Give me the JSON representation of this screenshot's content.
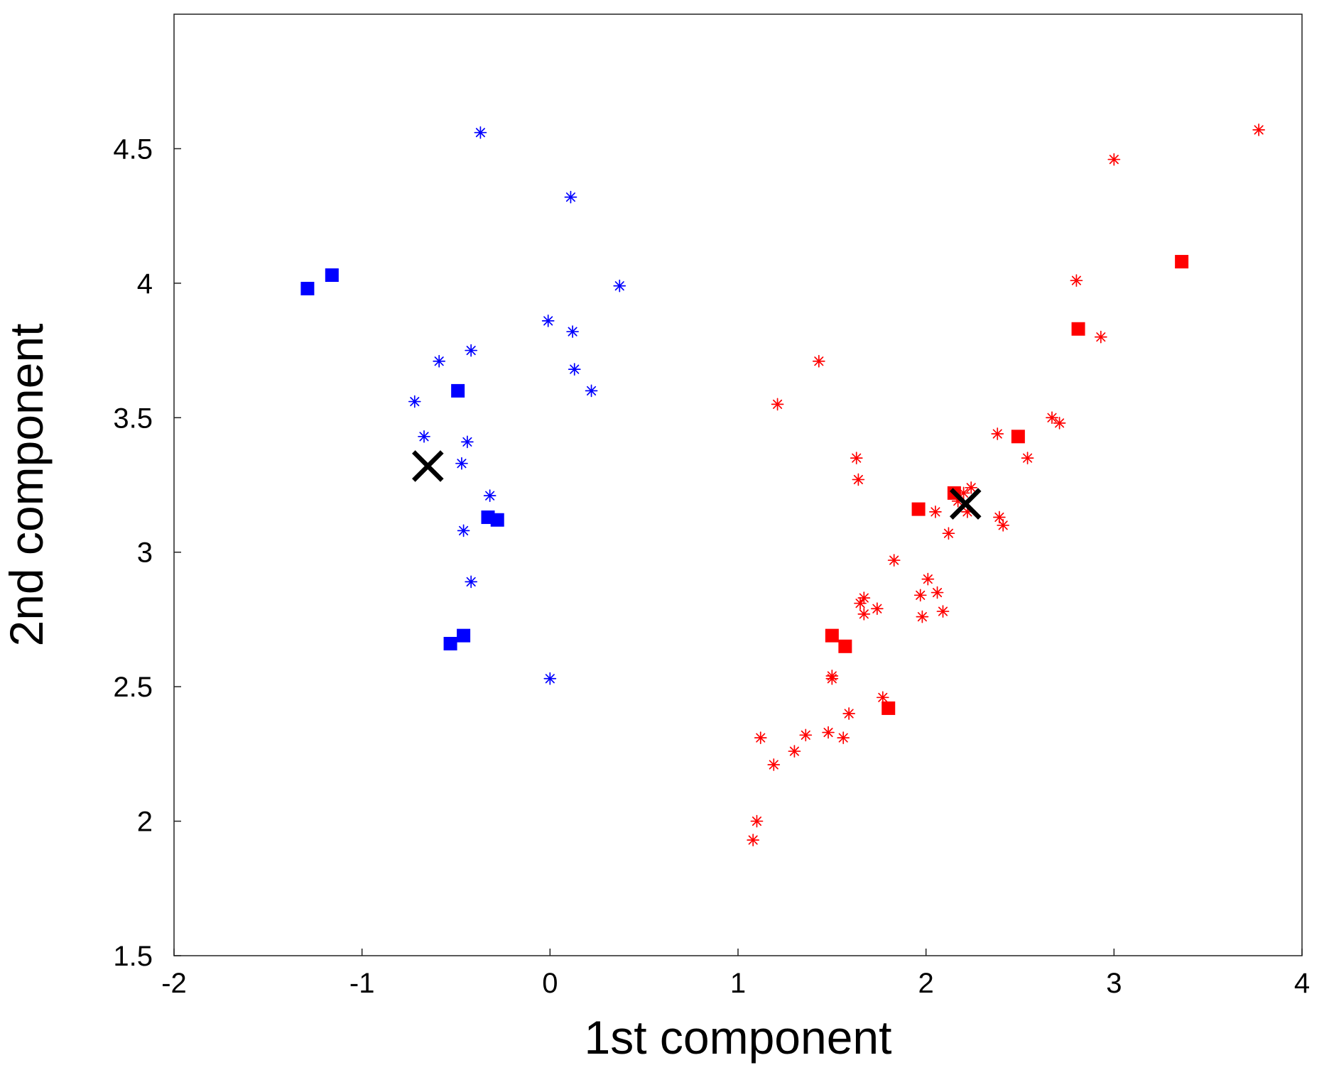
{
  "chart_data": {
    "type": "scatter",
    "title": "",
    "xlabel": "1st component",
    "ylabel": "2nd component",
    "xlim": [
      -2,
      4
    ],
    "ylim": [
      1.5,
      5
    ],
    "x_ticks": [
      -2,
      -1,
      0,
      1,
      2,
      3,
      4
    ],
    "y_ticks": [
      1.5,
      2,
      2.5,
      3,
      3.5,
      4,
      4.5
    ],
    "x_tick_labels": [
      "-2",
      "-1",
      "0",
      "1",
      "2",
      "3",
      "4"
    ],
    "y_tick_labels": [
      "1.5",
      "2",
      "2.5",
      "3",
      "3.5",
      "4",
      "4.5"
    ],
    "grid": false,
    "legend": "none",
    "series": [
      {
        "marker": "asterisk",
        "color": "#0000ff",
        "points": [
          [
            -0.37,
            4.56
          ],
          [
            0.11,
            4.32
          ],
          [
            0.37,
            3.99
          ],
          [
            -0.01,
            3.86
          ],
          [
            0.12,
            3.82
          ],
          [
            -0.42,
            3.75
          ],
          [
            -0.59,
            3.71
          ],
          [
            0.13,
            3.68
          ],
          [
            0.22,
            3.6
          ],
          [
            -0.72,
            3.56
          ],
          [
            -0.67,
            3.43
          ],
          [
            -0.44,
            3.41
          ],
          [
            -0.47,
            3.33
          ],
          [
            -0.32,
            3.21
          ],
          [
            -0.46,
            3.08
          ],
          [
            -0.42,
            2.89
          ],
          [
            0.0,
            2.53
          ]
        ]
      },
      {
        "marker": "square",
        "color": "#0000ff",
        "points": [
          [
            -1.29,
            3.98
          ],
          [
            -1.16,
            4.03
          ],
          [
            -0.49,
            3.6
          ],
          [
            -0.33,
            3.13
          ],
          [
            -0.28,
            3.12
          ],
          [
            -0.46,
            2.69
          ],
          [
            -0.53,
            2.66
          ]
        ]
      },
      {
        "marker": "asterisk",
        "color": "#ff0000",
        "points": [
          [
            3.77,
            4.57
          ],
          [
            3.0,
            4.46
          ],
          [
            2.8,
            4.01
          ],
          [
            2.93,
            3.8
          ],
          [
            1.43,
            3.71
          ],
          [
            1.21,
            3.55
          ],
          [
            2.67,
            3.5
          ],
          [
            2.71,
            3.48
          ],
          [
            2.38,
            3.44
          ],
          [
            2.54,
            3.35
          ],
          [
            1.63,
            3.35
          ],
          [
            1.64,
            3.27
          ],
          [
            2.24,
            3.24
          ],
          [
            2.2,
            3.22
          ],
          [
            2.17,
            3.19
          ],
          [
            2.22,
            3.15
          ],
          [
            2.05,
            3.15
          ],
          [
            2.39,
            3.13
          ],
          [
            2.41,
            3.1
          ],
          [
            2.12,
            3.07
          ],
          [
            1.83,
            2.97
          ],
          [
            2.01,
            2.9
          ],
          [
            1.97,
            2.84
          ],
          [
            2.06,
            2.85
          ],
          [
            1.67,
            2.83
          ],
          [
            1.65,
            2.81
          ],
          [
            1.74,
            2.79
          ],
          [
            1.67,
            2.77
          ],
          [
            2.09,
            2.78
          ],
          [
            1.98,
            2.76
          ],
          [
            1.5,
            2.54
          ],
          [
            1.5,
            2.53
          ],
          [
            1.77,
            2.46
          ],
          [
            1.59,
            2.4
          ],
          [
            1.12,
            2.31
          ],
          [
            1.36,
            2.32
          ],
          [
            1.48,
            2.33
          ],
          [
            1.56,
            2.31
          ],
          [
            1.3,
            2.26
          ],
          [
            1.19,
            2.21
          ],
          [
            1.1,
            2.0
          ],
          [
            1.08,
            1.93
          ]
        ]
      },
      {
        "marker": "square",
        "color": "#ff0000",
        "points": [
          [
            3.36,
            4.08
          ],
          [
            2.81,
            3.83
          ],
          [
            2.49,
            3.43
          ],
          [
            1.96,
            3.16
          ],
          [
            2.15,
            3.22
          ],
          [
            1.5,
            2.69
          ],
          [
            1.57,
            2.65
          ],
          [
            1.8,
            2.42
          ]
        ]
      },
      {
        "marker": "cross",
        "color": "#000000",
        "points": [
          [
            -0.65,
            3.32
          ],
          [
            2.21,
            3.18
          ]
        ]
      }
    ]
  }
}
